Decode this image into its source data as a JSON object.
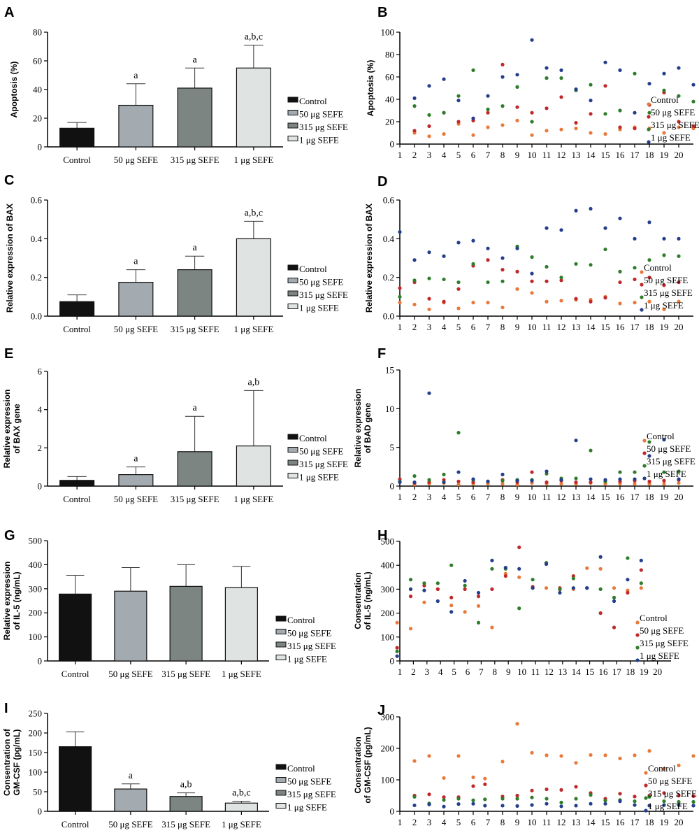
{
  "colors": {
    "bars": [
      "#111111",
      "#a3abb0",
      "#7d8583",
      "#dfe3e2"
    ],
    "dots": [
      "#e8793a",
      "#c0282a",
      "#2e7d2a",
      "#233e8b"
    ]
  },
  "legend_labels": [
    "Control",
    "50 μg SEFE",
    "315 μg SEFE",
    "1 μg SEFE"
  ],
  "chart_data": [
    {
      "type": "bar",
      "panel": "A",
      "ylabel": [
        "Apoptosis (%)"
      ],
      "categories": [
        "Control",
        "50 μg SEFE",
        "315 μg SEFE",
        "1 μg SEFE"
      ],
      "values": [
        13,
        29,
        41,
        55
      ],
      "errors": [
        4,
        15,
        14,
        16
      ],
      "significance": [
        "",
        "a",
        "a",
        "a,b,c"
      ],
      "ylim": [
        0,
        80
      ],
      "yticks": [
        "0",
        "20",
        "40",
        "60",
        "80"
      ],
      "legend": [
        "Control",
        "50 μg SEFE",
        "315 μg SEFE",
        "1 μg SEFE"
      ]
    },
    {
      "type": "scatter",
      "panel": "B",
      "ylabel": [
        "Apoptosis (%)"
      ],
      "ylim": [
        0,
        100
      ],
      "yticks": [
        "0",
        "20",
        "40",
        "60",
        "80",
        "100"
      ],
      "xticks": [
        "1",
        "2",
        "3",
        "4",
        "5",
        "6",
        "7",
        "8",
        "9",
        "10",
        "11",
        "12",
        "13",
        "14",
        "15",
        "16",
        "17",
        "18",
        "19",
        "20"
      ],
      "legend": [
        "Control",
        "50 μg SEFE",
        "315 μg SEFE",
        "1 μg SEFE"
      ],
      "x": [
        2,
        3,
        4,
        5,
        6,
        7,
        8,
        9,
        10,
        11,
        12,
        13,
        14,
        15,
        16,
        17,
        18,
        19,
        20,
        21
      ],
      "series": [
        {
          "name": "Control",
          "values": [
            10,
            7,
            9,
            18,
            8,
            15,
            17,
            21,
            8,
            12,
            13,
            14,
            10,
            9,
            13,
            15,
            14,
            10,
            15,
            14
          ]
        },
        {
          "name": "50 μg SEFE",
          "values": [
            12,
            16,
            28,
            20,
            21,
            28,
            71,
            33,
            28,
            32,
            42,
            19,
            27,
            52,
            15,
            14,
            35,
            46,
            20,
            16
          ]
        },
        {
          "name": "315 μg SEFE",
          "values": [
            34,
            26,
            28,
            43,
            66,
            31,
            34,
            51,
            20,
            59,
            59,
            48,
            53,
            27,
            30,
            63,
            28,
            48,
            43,
            38
          ]
        },
        {
          "name": "1 μg SEFE",
          "values": [
            41,
            52,
            58,
            39,
            23,
            43,
            60,
            62,
            93,
            68,
            66,
            49,
            39,
            73,
            66,
            28,
            54,
            63,
            68,
            53
          ]
        }
      ]
    },
    {
      "type": "bar",
      "panel": "C",
      "ylabel": [
        "Relative expression of BAX"
      ],
      "categories": [
        "Control",
        "50 μg SEFE",
        "315 μg SEFE",
        "1 μg SEFE"
      ],
      "values": [
        0.075,
        0.175,
        0.24,
        0.4
      ],
      "errors": [
        0.035,
        0.065,
        0.07,
        0.09
      ],
      "significance": [
        "",
        "a",
        "a",
        "a,b,c"
      ],
      "ylim": [
        0,
        0.6
      ],
      "yticks": [
        "0.0",
        "0.2",
        "0.4",
        "0.6"
      ],
      "legend": [
        "Control",
        "50 μg SEFE",
        "315 μg SEFE",
        "1 μg SEFE"
      ]
    },
    {
      "type": "scatter",
      "panel": "D",
      "ylabel": [
        "Relative expression of BAX"
      ],
      "ylim": [
        0,
        0.6
      ],
      "yticks": [
        "0.0",
        "0.2",
        "0.4",
        "0.6"
      ],
      "xticks": [
        "1",
        "2",
        "3",
        "4",
        "5",
        "6",
        "7",
        "8",
        "9",
        "10",
        "11",
        "12",
        "13",
        "14",
        "15",
        "16",
        "17",
        "18",
        "19",
        "20"
      ],
      "legend": [
        "Control",
        "50 μg SEFE",
        "315 μg SEFE",
        "1 μg SEFE"
      ],
      "x": [
        1,
        2,
        3,
        4,
        5,
        6,
        7,
        8,
        9,
        10,
        11,
        12,
        13,
        14,
        15,
        16,
        17,
        18,
        19,
        20
      ],
      "series": [
        {
          "name": "Control",
          "values": [
            0.07,
            0.06,
            0.035,
            0.07,
            0.04,
            0.07,
            0.07,
            0.045,
            0.14,
            0.12,
            0.075,
            0.08,
            0.085,
            0.085,
            0.1,
            0.065,
            0.07,
            0.075,
            0.035,
            0.075
          ]
        },
        {
          "name": "50 μg SEFE",
          "values": [
            0.145,
            0.175,
            0.09,
            0.075,
            0.14,
            0.26,
            0.29,
            0.24,
            0.23,
            0.18,
            0.18,
            0.185,
            0.09,
            0.075,
            0.095,
            0.175,
            0.19,
            0.2,
            0.16,
            0.175
          ]
        },
        {
          "name": "315 μg SEFE",
          "values": [
            0.1,
            0.185,
            0.195,
            0.19,
            0.175,
            0.27,
            0.175,
            0.18,
            0.36,
            0.305,
            0.255,
            0.2,
            0.27,
            0.265,
            0.345,
            0.23,
            0.25,
            0.29,
            0.315,
            0.31
          ]
        },
        {
          "name": "1 μg SEFE",
          "values": [
            0.435,
            0.29,
            0.33,
            0.31,
            0.38,
            0.39,
            0.35,
            0.3,
            0.35,
            0.22,
            0.455,
            0.445,
            0.545,
            0.555,
            0.455,
            0.505,
            0.4,
            0.485,
            0.4,
            0.4
          ]
        }
      ]
    },
    {
      "type": "bar",
      "panel": "E",
      "ylabel": [
        "Relative expression",
        "of BAX gene"
      ],
      "categories": [
        "Control",
        "50 μg SEFE",
        "315 μg SEFE",
        "1 μg SEFE"
      ],
      "values": [
        0.3,
        0.6,
        1.8,
        2.1
      ],
      "errors": [
        0.2,
        0.4,
        1.85,
        2.9
      ],
      "significance": [
        "",
        "a",
        "a",
        "a,b"
      ],
      "ylim": [
        0,
        6
      ],
      "yticks": [
        "0",
        "2",
        "4",
        "6"
      ],
      "legend": [
        "Control",
        "50 μg SEFE",
        "315 μg SEFE",
        "1 μg SEFE"
      ]
    },
    {
      "type": "scatter",
      "panel": "F",
      "ylabel": [
        "Relative expression",
        "of BAD gene"
      ],
      "ylim": [
        0,
        15
      ],
      "yticks": [
        "0",
        "5",
        "10",
        "15"
      ],
      "xticks": [
        "1",
        "2",
        "3",
        "4",
        "5",
        "6",
        "7",
        "8",
        "9",
        "10",
        "11",
        "12",
        "13",
        "14",
        "15",
        "16",
        "17",
        "18",
        "19",
        "20"
      ],
      "legend": [
        "Control",
        "50 μg SEFE",
        "315 μg SEFE",
        "1 μg SEFE"
      ],
      "x": [
        1,
        2,
        3,
        4,
        5,
        6,
        7,
        8,
        9,
        10,
        11,
        12,
        13,
        14,
        15,
        16,
        17,
        18,
        19,
        20
      ],
      "series": [
        {
          "name": "Control",
          "values": [
            0.5,
            0.2,
            0.3,
            0.4,
            0.2,
            0.3,
            0.3,
            0.3,
            0.2,
            0.4,
            0.3,
            0.3,
            0.3,
            0.4,
            0.3,
            0.3,
            0.3,
            0.3,
            0.3,
            0.4
          ]
        },
        {
          "name": "50 μg SEFE",
          "values": [
            0.9,
            0.4,
            0.5,
            0.8,
            0.6,
            0.5,
            0.6,
            0.8,
            0.5,
            1.8,
            0.5,
            0.7,
            0.5,
            0.5,
            0.6,
            0.6,
            0.7,
            0.6,
            0.7,
            0.8
          ]
        },
        {
          "name": "315 μg SEFE",
          "values": [
            0.6,
            1.3,
            0.8,
            1.5,
            6.9,
            0.8,
            0.6,
            0.7,
            0.8,
            0.8,
            1.6,
            1.0,
            1.0,
            4.6,
            0.6,
            1.8,
            1.8,
            5.7,
            1.8,
            1.9
          ]
        },
        {
          "name": "1 μg SEFE",
          "values": [
            0.5,
            0.5,
            12.0,
            0.5,
            1.8,
            0.9,
            0.6,
            1.5,
            0.7,
            0.7,
            1.9,
            0.8,
            5.9,
            0.9,
            0.8,
            0.9,
            0.9,
            3.9,
            6.0,
            0.9
          ]
        }
      ]
    },
    {
      "type": "bar",
      "panel": "G",
      "ylabel": [
        "Relative expression",
        "of IL-5 (ng/mL)"
      ],
      "categories": [
        "Control",
        "50 μg SEFE",
        "315 μg SEFE",
        "1 μg SEFE"
      ],
      "values": [
        278,
        290,
        310,
        305
      ],
      "errors": [
        78,
        98,
        90,
        88
      ],
      "significance": [
        "",
        "",
        "",
        ""
      ],
      "ylim": [
        0,
        500
      ],
      "yticks": [
        "0",
        "100",
        "200",
        "300",
        "400",
        "500"
      ],
      "legend": [
        "Control",
        "50 μg SEFE",
        "315 μg SEFE",
        "1 μg SEFE"
      ]
    },
    {
      "type": "scatter",
      "panel": "H",
      "ylabel": [
        "Consentration",
        "of IL-5 (ng/mL)"
      ],
      "ylim": [
        0,
        500
      ],
      "yticks": [
        "0",
        "100",
        "200",
        "300",
        "400",
        "500"
      ],
      "xticks": [
        "1",
        "2",
        "3",
        "4",
        "5",
        "6",
        "7",
        "8",
        "9",
        "10",
        "11",
        "12",
        "13",
        "14",
        "15",
        "16",
        "17",
        "18",
        "19",
        "20"
      ],
      "legend": [
        "Control",
        "50 μg SEFE",
        "315 μg SEFE",
        "1 μg SEFE"
      ],
      "x": [
        0.8,
        1.8,
        2.8,
        3.8,
        4.8,
        5.8,
        6.8,
        7.8,
        8.8,
        9.8,
        10.8,
        11.8,
        12.8,
        13.8,
        14.8,
        15.8,
        16.8,
        17.8,
        18.8
      ],
      "series": [
        {
          "name": "Control",
          "values": [
            160,
            135,
            245,
            300,
            232,
            205,
            230,
            140,
            365,
            350,
            305,
            305,
            298,
            300,
            388,
            385,
            305,
            295,
            305
          ]
        },
        {
          "name": "50 μg SEFE",
          "values": [
            55,
            270,
            315,
            300,
            265,
            300,
            270,
            300,
            355,
            475,
            310,
            410,
            305,
            355,
            305,
            200,
            140,
            285,
            380
          ]
        },
        {
          "name": "315 μg SEFE",
          "values": [
            40,
            340,
            325,
            325,
            400,
            315,
            160,
            385,
            385,
            220,
            340,
            410,
            300,
            345,
            305,
            300,
            265,
            430,
            325
          ]
        },
        {
          "name": "1 μg SEFE",
          "values": [
            20,
            300,
            295,
            250,
            205,
            335,
            285,
            420,
            390,
            385,
            305,
            405,
            285,
            305,
            305,
            435,
            250,
            340,
            420
          ]
        }
      ]
    },
    {
      "type": "bar",
      "panel": "I",
      "ylabel": [
        "Consentration of",
        "GM-CSF (pg/mL)"
      ],
      "categories": [
        "Control",
        "50 μg SEFE",
        "315 μg SEFE",
        "1 μg SEFE"
      ],
      "values": [
        165,
        57,
        38,
        21
      ],
      "errors": [
        38,
        13,
        9,
        5
      ],
      "significance": [
        "",
        "a",
        "a,b",
        "a,b,c"
      ],
      "ylim": [
        0,
        250
      ],
      "yticks": [
        "0",
        "50",
        "100",
        "150",
        "200",
        "250"
      ],
      "legend": [
        "Control",
        "50 μg SEFE",
        "315 μg SEFE",
        "1 μg SEFE"
      ]
    },
    {
      "type": "scatter",
      "panel": "J",
      "ylabel": [
        "Consentration",
        "of GM-CSF (pg/mL)"
      ],
      "ylim": [
        0,
        300
      ],
      "yticks": [
        "0",
        "100",
        "200",
        "300"
      ],
      "xticks": [
        "1",
        "2",
        "3",
        "4",
        "5",
        "6",
        "7",
        "8",
        "9",
        "10",
        "11",
        "12",
        "13",
        "14",
        "15",
        "16",
        "17",
        "18",
        "19",
        "20"
      ],
      "legend": [
        "Control",
        "50 μg SEFE",
        "315 μg SEFE",
        "1 μg SEFE"
      ],
      "x": [
        2,
        3,
        4,
        5,
        6,
        6.8,
        8,
        9,
        10,
        11,
        12,
        13,
        14,
        15,
        16,
        17,
        18,
        19,
        20,
        21
      ],
      "series": [
        {
          "name": "Control",
          "values": [
            160,
            176,
            106,
            176,
            108,
            104,
            158,
            278,
            186,
            178,
            176,
            154,
            179,
            178,
            168,
            178,
            192,
            135,
            146,
            176
          ]
        },
        {
          "name": "50 μg SEFE",
          "values": [
            50,
            54,
            45,
            45,
            80,
            86,
            47,
            50,
            66,
            70,
            68,
            78,
            58,
            40,
            56,
            47,
            50,
            58,
            50,
            48
          ]
        },
        {
          "name": "315 μg SEFE",
          "values": [
            46,
            25,
            36,
            40,
            35,
            38,
            40,
            40,
            44,
            40,
            28,
            40,
            52,
            34,
            36,
            32,
            46,
            32,
            30,
            30
          ]
        },
        {
          "name": "1 μg SEFE",
          "values": [
            19,
            22,
            15,
            23,
            24,
            18,
            18,
            17,
            20,
            24,
            16,
            18,
            24,
            24,
            32,
            20,
            18,
            20,
            20,
            18
          ]
        }
      ]
    }
  ]
}
